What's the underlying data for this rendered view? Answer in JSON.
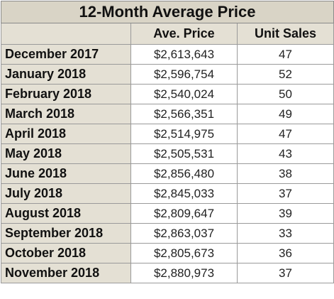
{
  "chart_data": {
    "type": "table",
    "title": "12-Month Average Price",
    "columns": [
      "",
      "Ave. Price",
      "Unit Sales"
    ],
    "rows": [
      {
        "month": "December 2017",
        "price": "$2,613,643",
        "sales": "47"
      },
      {
        "month": "January 2018",
        "price": "$2,596,754",
        "sales": "52"
      },
      {
        "month": "February 2018",
        "price": "$2,540,024",
        "sales": "50"
      },
      {
        "month": "March 2018",
        "price": "$2,566,351",
        "sales": "49"
      },
      {
        "month": "April 2018",
        "price": "$2,514,975",
        "sales": "47"
      },
      {
        "month": "May 2018",
        "price": "$2,505,531",
        "sales": "43"
      },
      {
        "month": "June 2018",
        "price": "$2,856,480",
        "sales": "38"
      },
      {
        "month": "July 2018",
        "price": "$2,845,033",
        "sales": "37"
      },
      {
        "month": "August 2018",
        "price": "$2,809,647",
        "sales": "39"
      },
      {
        "month": "September 2018",
        "price": "$2,863,037",
        "sales": "33"
      },
      {
        "month": "October 2018",
        "price": "$2,805,673",
        "sales": "36"
      },
      {
        "month": "November 2018",
        "price": "$2,880,973",
        "sales": "37"
      }
    ]
  },
  "colors": {
    "header_bg": "#d9d4c6",
    "label_bg": "#e4e0d4",
    "cell_bg": "#ffffff",
    "border": "#9a9a9a"
  }
}
